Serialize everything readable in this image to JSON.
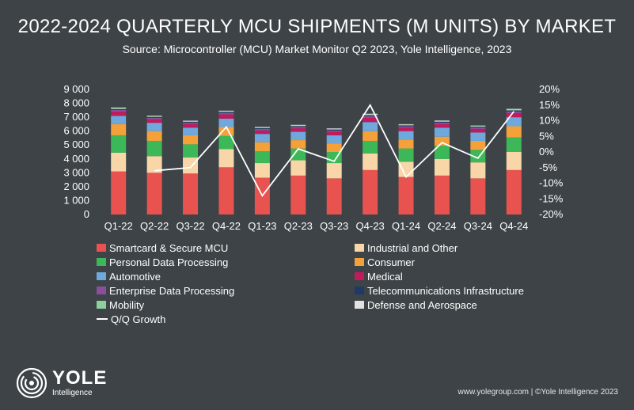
{
  "title": "2022-2024 QUARTERLY MCU SHIPMENTS (M UNITS) BY MARKET",
  "subtitle": "Source: Microcontroller (MCU) Market Monitor Q2 2023, Yole Intelligence, 2023",
  "footer": "www.yolegroup.com | ©Yole Intelligence 2023",
  "logo": {
    "brand": "YOLE",
    "sub": "Intelligence"
  },
  "chart_data": {
    "type": "bar",
    "stacked": true,
    "categories": [
      "Q1-22",
      "Q2-22",
      "Q3-22",
      "Q4-22",
      "Q1-23",
      "Q2-23",
      "Q3-23",
      "Q4-23",
      "Q1-24",
      "Q2-24",
      "Q3-24",
      "Q4-24"
    ],
    "ylim": [
      0,
      9000
    ],
    "yticks": [
      "0",
      "1 000",
      "2 000",
      "3 000",
      "4 000",
      "5 000",
      "6 000",
      "7 000",
      "8 000",
      "9 000"
    ],
    "y2lim": [
      -20,
      20
    ],
    "y2ticks": [
      "-20%",
      "-15%",
      "-10%",
      "-5%",
      "0%",
      "5%",
      "10%",
      "15%",
      "20%"
    ],
    "series": [
      {
        "name": "Smartcard & Secure MCU",
        "color": "#e8534f",
        "values": [
          3100,
          3000,
          2950,
          3400,
          2650,
          2800,
          2600,
          3200,
          2700,
          2800,
          2600,
          3200
        ]
      },
      {
        "name": "Industrial and Other",
        "color": "#f8d6a8",
        "values": [
          1350,
          1200,
          1150,
          1300,
          1050,
          1100,
          1100,
          1200,
          1100,
          1200,
          1150,
          1300
        ]
      },
      {
        "name": "Personal Data Processing",
        "color": "#3cb858",
        "values": [
          1250,
          1100,
          950,
          950,
          850,
          850,
          800,
          900,
          950,
          950,
          900,
          1050
        ]
      },
      {
        "name": "Consumer",
        "color": "#f5a13a",
        "values": [
          800,
          700,
          650,
          650,
          650,
          600,
          600,
          700,
          650,
          650,
          650,
          800
        ]
      },
      {
        "name": "Automotive",
        "color": "#6ea8dc",
        "values": [
          600,
          600,
          550,
          600,
          600,
          600,
          600,
          650,
          600,
          650,
          600,
          650
        ]
      },
      {
        "name": "Medical",
        "color": "#c21a5a",
        "values": [
          300,
          250,
          250,
          300,
          250,
          250,
          250,
          300,
          250,
          250,
          250,
          300
        ]
      },
      {
        "name": "Enterprise Data Processing",
        "color": "#8a4f9c",
        "values": [
          120,
          110,
          100,
          110,
          100,
          100,
          100,
          120,
          100,
          110,
          100,
          120
        ]
      },
      {
        "name": "Telecommunications Infrastructure",
        "color": "#1f3a66",
        "values": [
          70,
          60,
          60,
          70,
          60,
          60,
          60,
          70,
          60,
          60,
          60,
          70
        ]
      },
      {
        "name": "Mobility",
        "color": "#8dd19a",
        "values": [
          60,
          50,
          50,
          50,
          50,
          50,
          50,
          60,
          50,
          50,
          50,
          60
        ]
      },
      {
        "name": "Defense and Aerospace",
        "color": "#e2e2e2",
        "values": [
          50,
          40,
          40,
          40,
          40,
          40,
          40,
          50,
          40,
          40,
          40,
          50
        ]
      }
    ],
    "line": {
      "name": "Q/Q Growth",
      "color": "#ffffff",
      "values": [
        null,
        -6,
        -5,
        8,
        -14,
        1,
        -3,
        15,
        -8,
        3,
        -2,
        13
      ]
    }
  }
}
